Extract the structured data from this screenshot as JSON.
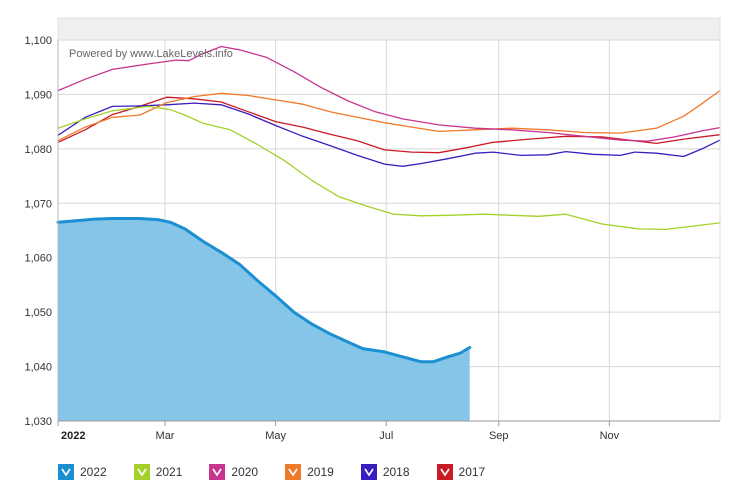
{
  "chart_data": {
    "type": "area",
    "title": "",
    "watermark": "Powered by www.LakeLevels.info",
    "xlabel": "",
    "ylabel": "",
    "ylim": [
      1030,
      1100
    ],
    "yticks": [
      1030,
      1040,
      1050,
      1060,
      1070,
      1080,
      1090,
      1100
    ],
    "ytick_labels": [
      "1,030",
      "1,040",
      "1,050",
      "1,060",
      "1,070",
      "1,080",
      "1,090",
      "1,100"
    ],
    "xlim": [
      0,
      365
    ],
    "xticks": [
      {
        "day": 0,
        "label": "2022",
        "bold": true
      },
      {
        "day": 59,
        "label": "Mar",
        "bold": false
      },
      {
        "day": 120,
        "label": "May",
        "bold": false
      },
      {
        "day": 181,
        "label": "Jul",
        "bold": false
      },
      {
        "day": 243,
        "label": "Sep",
        "bold": false
      },
      {
        "day": 304,
        "label": "Nov",
        "bold": false
      }
    ],
    "grid": true,
    "legend_position": "bottom",
    "series": [
      {
        "name": "2022",
        "color": "#1a8fd1",
        "fill": "#85c6e8",
        "style": "area",
        "points": [
          [
            0,
            1066.5
          ],
          [
            10,
            1066.8
          ],
          [
            20,
            1067.1
          ],
          [
            30,
            1067.2
          ],
          [
            45,
            1067.2
          ],
          [
            55,
            1067.0
          ],
          [
            62,
            1066.5
          ],
          [
            70,
            1065.3
          ],
          [
            80,
            1063.0
          ],
          [
            90,
            1061.0
          ],
          [
            100,
            1058.8
          ],
          [
            110,
            1055.8
          ],
          [
            120,
            1053.0
          ],
          [
            130,
            1050.0
          ],
          [
            140,
            1047.8
          ],
          [
            150,
            1046.0
          ],
          [
            160,
            1044.5
          ],
          [
            168,
            1043.3
          ],
          [
            180,
            1042.7
          ],
          [
            190,
            1041.8
          ],
          [
            200,
            1040.9
          ],
          [
            207,
            1040.9
          ],
          [
            215,
            1041.8
          ],
          [
            222,
            1042.5
          ],
          [
            227,
            1043.5
          ]
        ]
      },
      {
        "name": "2021",
        "color": "#a3d12a",
        "style": "line",
        "points": [
          [
            0,
            1083.8
          ],
          [
            15,
            1085.5
          ],
          [
            30,
            1087.0
          ],
          [
            50,
            1087.8
          ],
          [
            62,
            1087.2
          ],
          [
            70,
            1086.2
          ],
          [
            80,
            1084.7
          ],
          [
            95,
            1083.5
          ],
          [
            110,
            1080.8
          ],
          [
            125,
            1077.8
          ],
          [
            140,
            1074.2
          ],
          [
            155,
            1071.2
          ],
          [
            170,
            1069.5
          ],
          [
            185,
            1068.0
          ],
          [
            200,
            1067.7
          ],
          [
            215,
            1067.8
          ],
          [
            235,
            1068.0
          ],
          [
            250,
            1067.8
          ],
          [
            265,
            1067.6
          ],
          [
            280,
            1068.0
          ],
          [
            300,
            1066.2
          ],
          [
            320,
            1065.3
          ],
          [
            335,
            1065.2
          ],
          [
            350,
            1065.8
          ],
          [
            365,
            1066.4
          ]
        ]
      },
      {
        "name": "2020",
        "color": "#c8358e",
        "style": "line",
        "points": [
          [
            0,
            1090.7
          ],
          [
            15,
            1092.8
          ],
          [
            30,
            1094.6
          ],
          [
            50,
            1095.6
          ],
          [
            65,
            1096.3
          ],
          [
            72,
            1096.2
          ],
          [
            80,
            1097.5
          ],
          [
            90,
            1098.8
          ],
          [
            100,
            1098.2
          ],
          [
            115,
            1096.8
          ],
          [
            130,
            1094.2
          ],
          [
            145,
            1091.3
          ],
          [
            160,
            1088.8
          ],
          [
            175,
            1086.8
          ],
          [
            190,
            1085.5
          ],
          [
            210,
            1084.4
          ],
          [
            230,
            1083.8
          ],
          [
            250,
            1083.5
          ],
          [
            270,
            1083.0
          ],
          [
            290,
            1082.3
          ],
          [
            310,
            1081.6
          ],
          [
            325,
            1081.4
          ],
          [
            340,
            1082.2
          ],
          [
            355,
            1083.3
          ],
          [
            365,
            1083.9
          ]
        ]
      },
      {
        "name": "2019",
        "color": "#f07a2a",
        "style": "line",
        "points": [
          [
            0,
            1081.5
          ],
          [
            15,
            1084.0
          ],
          [
            30,
            1085.8
          ],
          [
            45,
            1086.2
          ],
          [
            60,
            1088.5
          ],
          [
            75,
            1089.6
          ],
          [
            90,
            1090.2
          ],
          [
            105,
            1089.8
          ],
          [
            120,
            1089.0
          ],
          [
            135,
            1088.2
          ],
          [
            150,
            1086.8
          ],
          [
            165,
            1085.8
          ],
          [
            180,
            1084.8
          ],
          [
            195,
            1084.0
          ],
          [
            210,
            1083.2
          ],
          [
            230,
            1083.5
          ],
          [
            250,
            1083.8
          ],
          [
            270,
            1083.5
          ],
          [
            290,
            1083.0
          ],
          [
            310,
            1082.9
          ],
          [
            330,
            1083.8
          ],
          [
            345,
            1086.0
          ],
          [
            355,
            1088.3
          ],
          [
            365,
            1090.7
          ]
        ]
      },
      {
        "name": "2018",
        "color": "#3b1dbf",
        "style": "line",
        "points": [
          [
            0,
            1082.5
          ],
          [
            15,
            1085.8
          ],
          [
            30,
            1087.8
          ],
          [
            45,
            1087.9
          ],
          [
            60,
            1088.1
          ],
          [
            75,
            1088.4
          ],
          [
            90,
            1088.1
          ],
          [
            105,
            1086.4
          ],
          [
            120,
            1084.3
          ],
          [
            135,
            1082.3
          ],
          [
            150,
            1080.6
          ],
          [
            165,
            1078.8
          ],
          [
            180,
            1077.2
          ],
          [
            190,
            1076.8
          ],
          [
            200,
            1077.3
          ],
          [
            215,
            1078.2
          ],
          [
            230,
            1079.2
          ],
          [
            240,
            1079.4
          ],
          [
            255,
            1078.8
          ],
          [
            270,
            1078.9
          ],
          [
            280,
            1079.5
          ],
          [
            295,
            1079.0
          ],
          [
            310,
            1078.8
          ],
          [
            318,
            1079.4
          ],
          [
            330,
            1079.2
          ],
          [
            345,
            1078.6
          ],
          [
            355,
            1080.0
          ],
          [
            365,
            1081.6
          ]
        ]
      },
      {
        "name": "2017",
        "color": "#c81b25",
        "style": "line",
        "points": [
          [
            0,
            1081.2
          ],
          [
            15,
            1083.5
          ],
          [
            30,
            1086.3
          ],
          [
            45,
            1087.8
          ],
          [
            60,
            1089.5
          ],
          [
            75,
            1089.2
          ],
          [
            90,
            1088.6
          ],
          [
            105,
            1086.8
          ],
          [
            120,
            1085.0
          ],
          [
            135,
            1084.0
          ],
          [
            150,
            1082.7
          ],
          [
            165,
            1081.5
          ],
          [
            180,
            1079.8
          ],
          [
            195,
            1079.4
          ],
          [
            210,
            1079.3
          ],
          [
            225,
            1080.2
          ],
          [
            240,
            1081.2
          ],
          [
            260,
            1081.8
          ],
          [
            280,
            1082.3
          ],
          [
            300,
            1082.2
          ],
          [
            315,
            1081.6
          ],
          [
            330,
            1081.0
          ],
          [
            345,
            1081.8
          ],
          [
            365,
            1082.6
          ]
        ]
      }
    ]
  }
}
